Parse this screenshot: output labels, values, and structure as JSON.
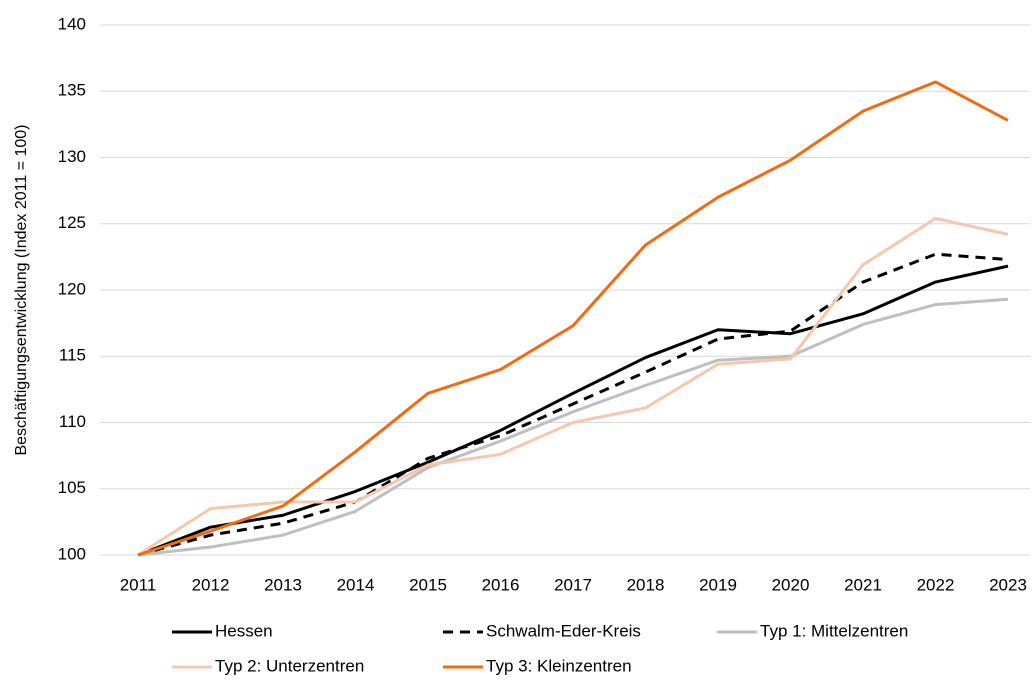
{
  "chart_data": {
    "type": "line",
    "y_label": "Beschäftigungsentwicklung (Index 2011 = 100)",
    "categories": [
      "2011",
      "2012",
      "2013",
      "2014",
      "2015",
      "2016",
      "2017",
      "2018",
      "2019",
      "2020",
      "2021",
      "2022",
      "2023"
    ],
    "series": [
      {
        "name": "Hessen",
        "color": "#000000",
        "dashed": false,
        "values": [
          100,
          102.1,
          103,
          104.8,
          107,
          109.4,
          112.2,
          114.9,
          117,
          116.7,
          118.2,
          120.6,
          121.8
        ]
      },
      {
        "name": "Schwalm-Eder-Kreis",
        "color": "#000000",
        "dashed": true,
        "values": [
          100,
          101.5,
          102.4,
          104,
          107.3,
          109,
          111.4,
          113.8,
          116.3,
          116.9,
          120.6,
          122.7,
          122.3
        ]
      },
      {
        "name": "Typ 1: Mittelzentren",
        "color": "#bfbfbf",
        "dashed": false,
        "values": [
          100,
          100.6,
          101.5,
          103.3,
          106.6,
          108.6,
          110.8,
          112.8,
          114.7,
          115,
          117.4,
          118.9,
          119.3
        ]
      },
      {
        "name": "Typ 2: Unterzentren",
        "color": "#f4c7ae",
        "dashed": false,
        "values": [
          100,
          103.5,
          104,
          104,
          106.8,
          107.6,
          110,
          111.1,
          114.4,
          114.8,
          121.9,
          125.4,
          124.2
        ]
      },
      {
        "name": "Typ 3: Kleinzentren",
        "color": "#f26b12",
        "dashed": false,
        "values": [
          100,
          101.8,
          103.7,
          107.8,
          112.2,
          114,
          117.3,
          123.4,
          127,
          129.8,
          133.5,
          135.7,
          132.8
        ]
      }
    ],
    "ylim": [
      100,
      140
    ],
    "yticks": [
      100,
      105,
      110,
      115,
      120,
      125,
      130,
      135,
      140
    ],
    "grid": true,
    "legend": "bottom"
  }
}
